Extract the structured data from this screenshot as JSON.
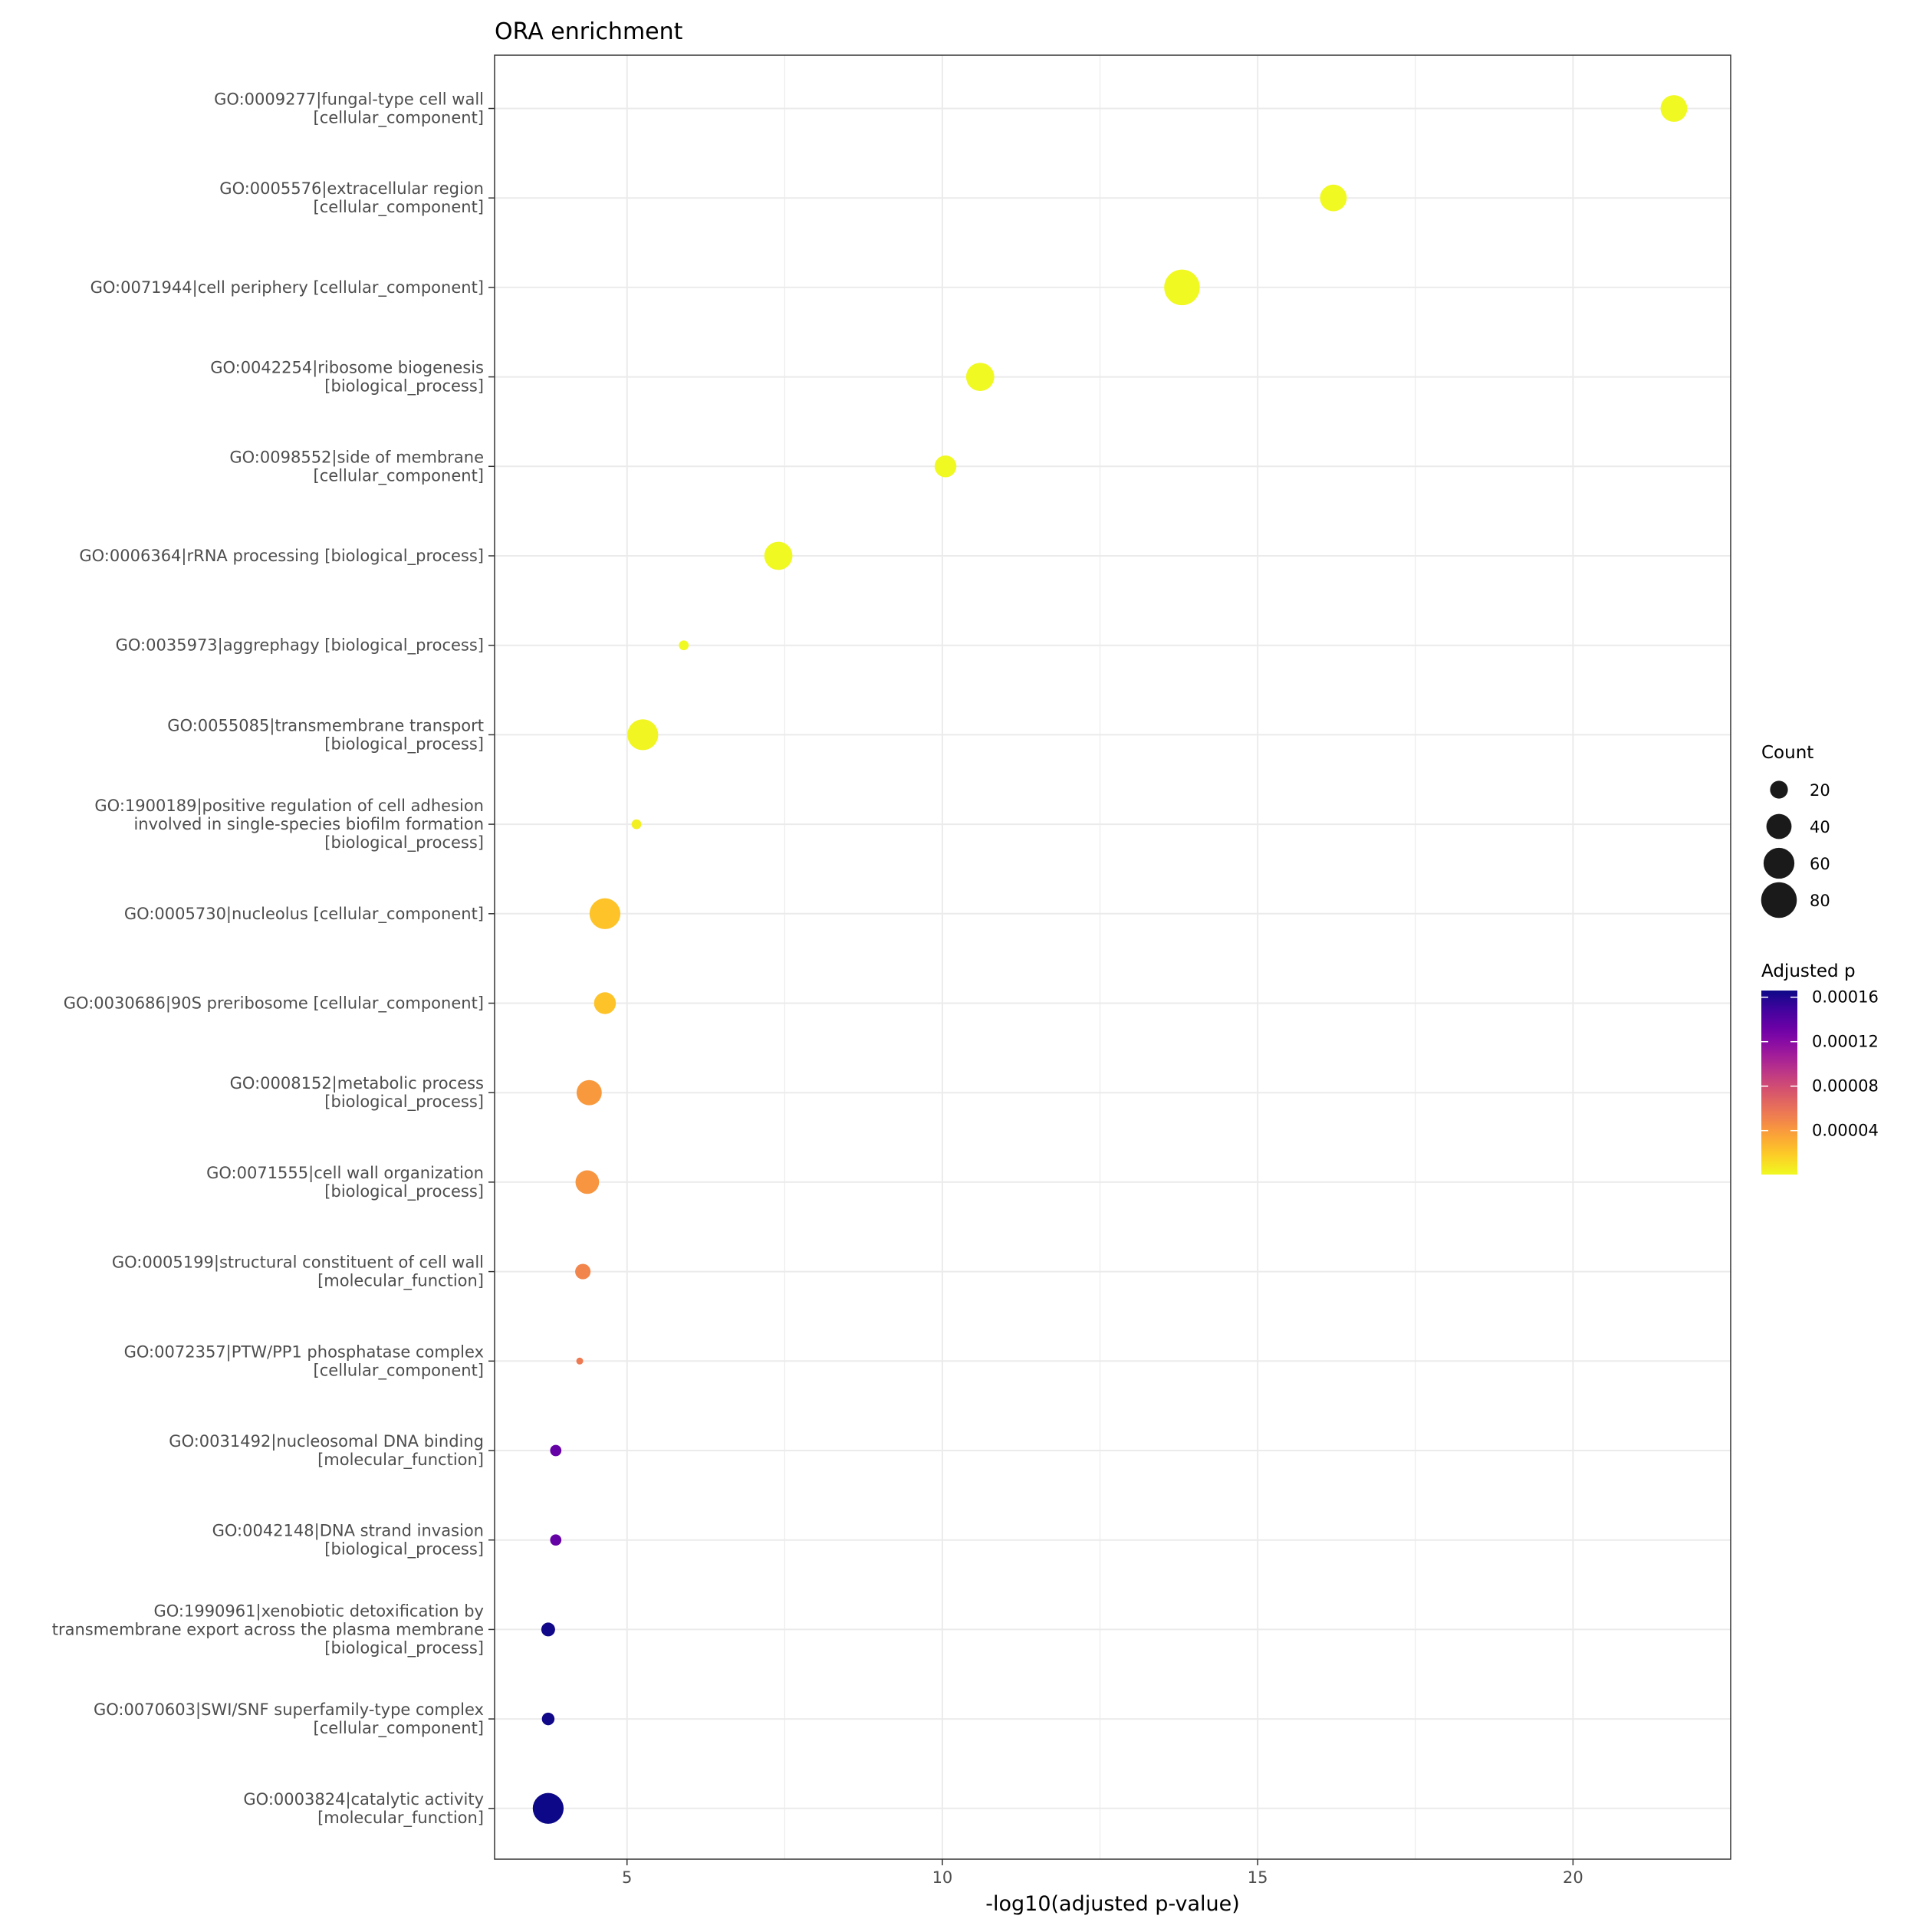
{
  "chart_data": {
    "type": "scatter",
    "title": "ORA enrichment",
    "xlabel": "-log10(adjusted p-value)",
    "ylabel": "",
    "xlim": [
      2.9,
      22.5
    ],
    "x_ticks": [
      5,
      10,
      15,
      20
    ],
    "grid": true,
    "legend_position": "right",
    "size_legend": {
      "title": "Count",
      "values": [
        20,
        40,
        60,
        80
      ]
    },
    "color_legend": {
      "title": "Adjusted p",
      "min": 5e-07,
      "max": 0.000166,
      "ticks": [
        4e-05,
        8e-05,
        0.00012,
        0.00016
      ],
      "tick_labels": [
        "0.00004",
        "0.00008",
        "0.00012",
        "0.00016"
      ],
      "palette": [
        "#f0f921",
        "#fdca26",
        "#fb9f3a",
        "#ed7953",
        "#d8576b",
        "#bd3786",
        "#9c179e",
        "#7201a8",
        "#46039f",
        "#0d0887"
      ]
    },
    "points": [
      {
        "term": [
          "GO:0009277|fungal-type cell wall",
          "[cellular_component]"
        ],
        "x": 21.6,
        "count": 45,
        "p_adj": 5e-07
      },
      {
        "term": [
          "GO:0005576|extracellular region",
          "[cellular_component]"
        ],
        "x": 16.2,
        "count": 45,
        "p_adj": 5e-07
      },
      {
        "term": [
          "GO:0071944|cell periphery [cellular_component]"
        ],
        "x": 13.8,
        "count": 80,
        "p_adj": 5e-07
      },
      {
        "term": [
          "GO:0042254|ribosome biogenesis",
          "[biological_process]"
        ],
        "x": 10.6,
        "count": 50,
        "p_adj": 5e-07
      },
      {
        "term": [
          "GO:0098552|side of membrane",
          "[cellular_component]"
        ],
        "x": 10.05,
        "count": 30,
        "p_adj": 5e-07
      },
      {
        "term": [
          "GO:0006364|rRNA processing [biological_process]"
        ],
        "x": 7.4,
        "count": 50,
        "p_adj": 5e-07
      },
      {
        "term": [
          "GO:0035973|aggrephagy [biological_process]"
        ],
        "x": 5.9,
        "count": 6,
        "p_adj": 5e-07
      },
      {
        "term": [
          "GO:0055085|transmembrane transport",
          "[biological_process]"
        ],
        "x": 5.25,
        "count": 60,
        "p_adj": 2e-06
      },
      {
        "term": [
          "GO:1900189|positive regulation of cell adhesion",
          "involved in single-species biofilm formation",
          "[biological_process]"
        ],
        "x": 5.15,
        "count": 6,
        "p_adj": 4e-06
      },
      {
        "term": [
          "GO:0005730|nucleolus [cellular_component]"
        ],
        "x": 4.65,
        "count": 60,
        "p_adj": 2.2e-05
      },
      {
        "term": [
          "GO:0030686|90S preribosome [cellular_component]"
        ],
        "x": 4.65,
        "count": 30,
        "p_adj": 2.2e-05
      },
      {
        "term": [
          "GO:0008152|metabolic process",
          "[biological_process]"
        ],
        "x": 4.4,
        "count": 40,
        "p_adj": 4e-05
      },
      {
        "term": [
          "GO:0071555|cell wall organization",
          "[biological_process]"
        ],
        "x": 4.37,
        "count": 35,
        "p_adj": 4.2e-05
      },
      {
        "term": [
          "GO:0005199|structural constituent of cell wall",
          "[molecular_function]"
        ],
        "x": 4.3,
        "count": 15,
        "p_adj": 5e-05
      },
      {
        "term": [
          "GO:0072357|PTW/PP1 phosphatase complex",
          "[cellular_component]"
        ],
        "x": 4.25,
        "count": 3,
        "p_adj": 5.5e-05
      },
      {
        "term": [
          "GO:0031492|nucleosomal DNA binding",
          "[molecular_function]"
        ],
        "x": 3.87,
        "count": 8,
        "p_adj": 0.000135
      },
      {
        "term": [
          "GO:0042148|DNA strand invasion",
          "[biological_process]"
        ],
        "x": 3.87,
        "count": 8,
        "p_adj": 0.000135
      },
      {
        "term": [
          "GO:1990961|xenobiotic detoxification by",
          "transmembrane export across the plasma membrane",
          "[biological_process]"
        ],
        "x": 3.75,
        "count": 12,
        "p_adj": 0.000165
      },
      {
        "term": [
          "GO:0070603|SWI/SNF superfamily-type complex",
          "[cellular_component]"
        ],
        "x": 3.75,
        "count": 10,
        "p_adj": 0.000165
      },
      {
        "term": [
          "GO:0003824|catalytic activity",
          "[molecular_function]"
        ],
        "x": 3.75,
        "count": 60,
        "p_adj": 0.000166
      }
    ]
  }
}
